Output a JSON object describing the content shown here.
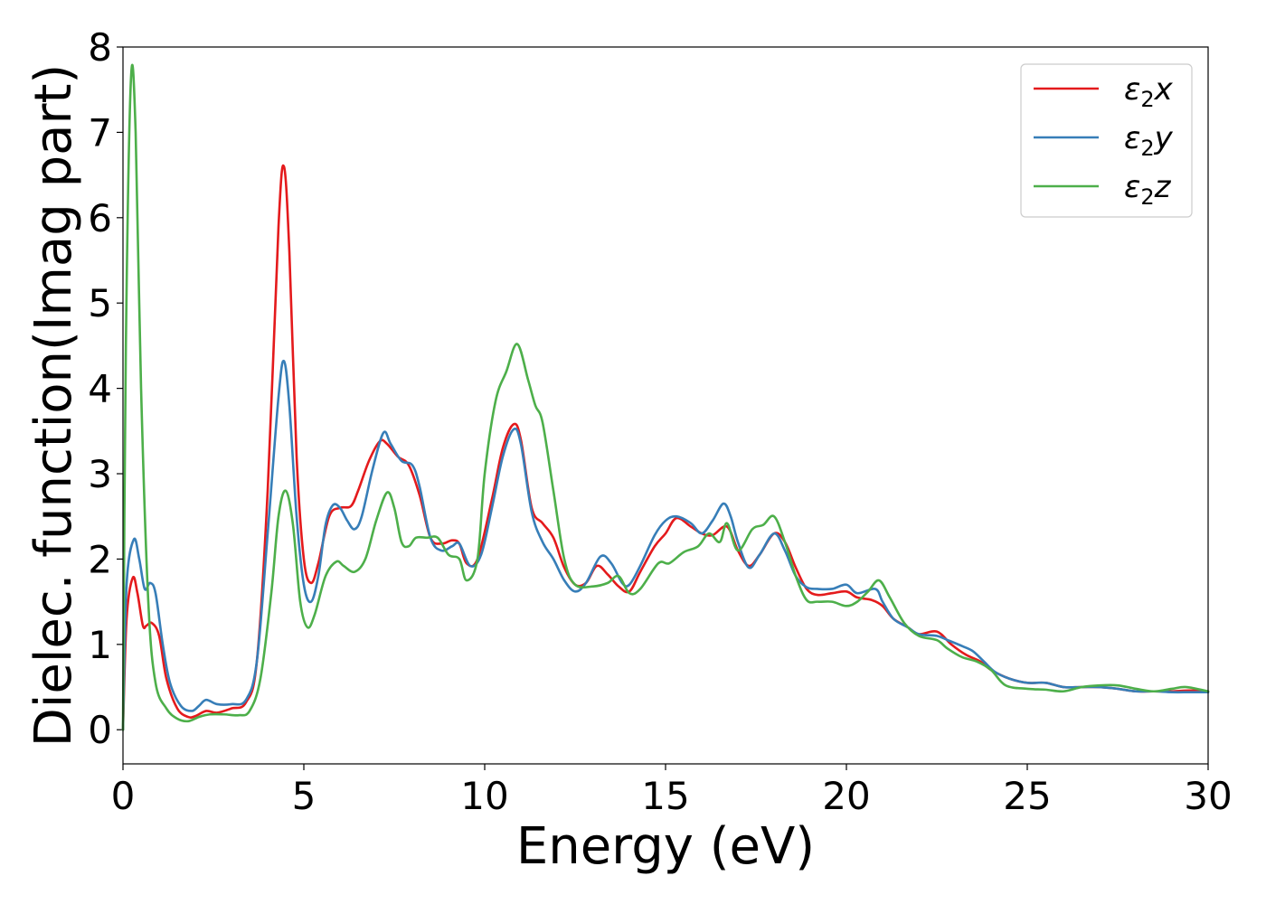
{
  "chart_data": {
    "type": "line",
    "title": "",
    "xlabel": "Energy (eV)",
    "ylabel": "Dielec. function(Imag part)",
    "xlim": [
      0,
      30
    ],
    "ylim": [
      -0.4,
      8
    ],
    "x_ticks": [
      0,
      5,
      10,
      15,
      20,
      25,
      30
    ],
    "y_ticks": [
      0,
      1,
      2,
      3,
      4,
      5,
      6,
      7,
      8
    ],
    "grid": false,
    "legend_position": "top-right",
    "series": [
      {
        "name": "ε2x",
        "legend_base": "ε",
        "legend_sub": "2",
        "legend_var": "x",
        "color": "#e41a1c",
        "points": [
          [
            0,
            0
          ],
          [
            0.1,
            1.3
          ],
          [
            0.27,
            1.78
          ],
          [
            0.4,
            1.6
          ],
          [
            0.55,
            1.22
          ],
          [
            0.65,
            1.22
          ],
          [
            0.8,
            1.25
          ],
          [
            1.0,
            1.1
          ],
          [
            1.2,
            0.6
          ],
          [
            1.5,
            0.25
          ],
          [
            1.8,
            0.15
          ],
          [
            2.0,
            0.16
          ],
          [
            2.3,
            0.22
          ],
          [
            2.6,
            0.2
          ],
          [
            3.0,
            0.25
          ],
          [
            3.4,
            0.32
          ],
          [
            3.7,
            0.8
          ],
          [
            4.0,
            2.8
          ],
          [
            4.3,
            5.9
          ],
          [
            4.45,
            6.6
          ],
          [
            4.6,
            5.6
          ],
          [
            4.8,
            3.2
          ],
          [
            5.0,
            2.0
          ],
          [
            5.2,
            1.72
          ],
          [
            5.4,
            1.95
          ],
          [
            5.7,
            2.5
          ],
          [
            6.0,
            2.6
          ],
          [
            6.3,
            2.62
          ],
          [
            6.5,
            2.8
          ],
          [
            6.8,
            3.15
          ],
          [
            7.1,
            3.38
          ],
          [
            7.3,
            3.35
          ],
          [
            7.6,
            3.2
          ],
          [
            7.9,
            3.1
          ],
          [
            8.2,
            2.75
          ],
          [
            8.5,
            2.25
          ],
          [
            8.8,
            2.18
          ],
          [
            9.1,
            2.22
          ],
          [
            9.3,
            2.18
          ],
          [
            9.5,
            1.95
          ],
          [
            9.8,
            2.0
          ],
          [
            10.2,
            2.7
          ],
          [
            10.5,
            3.3
          ],
          [
            10.8,
            3.58
          ],
          [
            11.0,
            3.4
          ],
          [
            11.3,
            2.6
          ],
          [
            11.6,
            2.42
          ],
          [
            11.9,
            2.25
          ],
          [
            12.2,
            1.9
          ],
          [
            12.5,
            1.7
          ],
          [
            12.8,
            1.72
          ],
          [
            13.1,
            1.92
          ],
          [
            13.4,
            1.82
          ],
          [
            13.7,
            1.68
          ],
          [
            14.0,
            1.62
          ],
          [
            14.3,
            1.85
          ],
          [
            14.7,
            2.15
          ],
          [
            15.0,
            2.3
          ],
          [
            15.3,
            2.48
          ],
          [
            15.7,
            2.38
          ],
          [
            16.0,
            2.3
          ],
          [
            16.3,
            2.28
          ],
          [
            16.7,
            2.38
          ],
          [
            17.0,
            2.1
          ],
          [
            17.3,
            1.92
          ],
          [
            17.6,
            2.05
          ],
          [
            18.0,
            2.3
          ],
          [
            18.3,
            2.2
          ],
          [
            18.6,
            1.9
          ],
          [
            18.9,
            1.65
          ],
          [
            19.2,
            1.58
          ],
          [
            19.6,
            1.6
          ],
          [
            20.0,
            1.62
          ],
          [
            20.3,
            1.55
          ],
          [
            20.7,
            1.52
          ],
          [
            21.0,
            1.45
          ],
          [
            21.3,
            1.3
          ],
          [
            21.7,
            1.2
          ],
          [
            22.0,
            1.12
          ],
          [
            22.5,
            1.15
          ],
          [
            22.9,
            1.0
          ],
          [
            23.3,
            0.88
          ],
          [
            23.7,
            0.8
          ],
          [
            24.0,
            0.7
          ],
          [
            24.5,
            0.6
          ],
          [
            25.0,
            0.55
          ],
          [
            25.5,
            0.55
          ],
          [
            26.0,
            0.5
          ],
          [
            26.5,
            0.5
          ],
          [
            27.0,
            0.5
          ],
          [
            27.5,
            0.48
          ],
          [
            28.0,
            0.45
          ],
          [
            28.5,
            0.45
          ],
          [
            29.0,
            0.45
          ],
          [
            29.5,
            0.46
          ],
          [
            30.0,
            0.45
          ]
        ]
      },
      {
        "name": "ε2y",
        "legend_base": "ε",
        "legend_sub": "2",
        "legend_var": "y",
        "color": "#377eb8",
        "points": [
          [
            0,
            0
          ],
          [
            0.1,
            1.7
          ],
          [
            0.3,
            2.23
          ],
          [
            0.45,
            2.0
          ],
          [
            0.6,
            1.65
          ],
          [
            0.75,
            1.72
          ],
          [
            0.9,
            1.6
          ],
          [
            1.1,
            1.0
          ],
          [
            1.3,
            0.55
          ],
          [
            1.6,
            0.28
          ],
          [
            1.9,
            0.22
          ],
          [
            2.1,
            0.28
          ],
          [
            2.3,
            0.35
          ],
          [
            2.6,
            0.3
          ],
          [
            3.0,
            0.3
          ],
          [
            3.4,
            0.35
          ],
          [
            3.7,
            0.8
          ],
          [
            4.0,
            2.3
          ],
          [
            4.3,
            3.9
          ],
          [
            4.45,
            4.32
          ],
          [
            4.6,
            3.8
          ],
          [
            4.8,
            2.5
          ],
          [
            5.0,
            1.7
          ],
          [
            5.2,
            1.5
          ],
          [
            5.4,
            1.8
          ],
          [
            5.6,
            2.4
          ],
          [
            5.8,
            2.63
          ],
          [
            6.0,
            2.6
          ],
          [
            6.2,
            2.45
          ],
          [
            6.4,
            2.35
          ],
          [
            6.6,
            2.5
          ],
          [
            6.9,
            3.05
          ],
          [
            7.2,
            3.48
          ],
          [
            7.4,
            3.35
          ],
          [
            7.7,
            3.15
          ],
          [
            8.0,
            3.1
          ],
          [
            8.2,
            2.85
          ],
          [
            8.5,
            2.25
          ],
          [
            8.8,
            2.1
          ],
          [
            9.1,
            2.15
          ],
          [
            9.3,
            2.18
          ],
          [
            9.6,
            1.92
          ],
          [
            9.9,
            2.05
          ],
          [
            10.2,
            2.6
          ],
          [
            10.5,
            3.2
          ],
          [
            10.8,
            3.52
          ],
          [
            11.0,
            3.35
          ],
          [
            11.3,
            2.55
          ],
          [
            11.6,
            2.2
          ],
          [
            11.9,
            2.0
          ],
          [
            12.2,
            1.75
          ],
          [
            12.5,
            1.62
          ],
          [
            12.8,
            1.72
          ],
          [
            13.2,
            2.03
          ],
          [
            13.5,
            1.95
          ],
          [
            13.8,
            1.72
          ],
          [
            14.0,
            1.7
          ],
          [
            14.3,
            1.92
          ],
          [
            14.7,
            2.28
          ],
          [
            15.0,
            2.45
          ],
          [
            15.3,
            2.5
          ],
          [
            15.7,
            2.42
          ],
          [
            16.0,
            2.3
          ],
          [
            16.3,
            2.45
          ],
          [
            16.6,
            2.65
          ],
          [
            16.8,
            2.5
          ],
          [
            17.0,
            2.2
          ],
          [
            17.3,
            1.9
          ],
          [
            17.6,
            2.05
          ],
          [
            18.0,
            2.3
          ],
          [
            18.3,
            2.1
          ],
          [
            18.6,
            1.8
          ],
          [
            18.9,
            1.67
          ],
          [
            19.2,
            1.65
          ],
          [
            19.6,
            1.65
          ],
          [
            20.0,
            1.7
          ],
          [
            20.3,
            1.6
          ],
          [
            20.8,
            1.65
          ],
          [
            21.0,
            1.5
          ],
          [
            21.3,
            1.3
          ],
          [
            21.7,
            1.2
          ],
          [
            22.0,
            1.12
          ],
          [
            22.5,
            1.1
          ],
          [
            22.8,
            1.05
          ],
          [
            23.2,
            0.98
          ],
          [
            23.5,
            0.92
          ],
          [
            23.8,
            0.8
          ],
          [
            24.1,
            0.68
          ],
          [
            24.5,
            0.6
          ],
          [
            25.0,
            0.55
          ],
          [
            25.5,
            0.55
          ],
          [
            26.0,
            0.5
          ],
          [
            26.5,
            0.5
          ],
          [
            27.0,
            0.5
          ],
          [
            27.5,
            0.48
          ],
          [
            28.0,
            0.45
          ],
          [
            28.5,
            0.45
          ],
          [
            29.0,
            0.44
          ],
          [
            29.5,
            0.44
          ],
          [
            30.0,
            0.44
          ]
        ]
      },
      {
        "name": "ε2z",
        "legend_base": "ε",
        "legend_sub": "2",
        "legend_var": "z",
        "color": "#4daf4a",
        "points": [
          [
            0,
            0
          ],
          [
            0.08,
            4.5
          ],
          [
            0.22,
            7.62
          ],
          [
            0.35,
            7.0
          ],
          [
            0.5,
            4.0
          ],
          [
            0.7,
            1.5
          ],
          [
            0.9,
            0.55
          ],
          [
            1.2,
            0.25
          ],
          [
            1.5,
            0.13
          ],
          [
            1.8,
            0.1
          ],
          [
            2.1,
            0.15
          ],
          [
            2.4,
            0.18
          ],
          [
            2.8,
            0.18
          ],
          [
            3.2,
            0.17
          ],
          [
            3.5,
            0.22
          ],
          [
            3.8,
            0.6
          ],
          [
            4.1,
            1.6
          ],
          [
            4.3,
            2.5
          ],
          [
            4.5,
            2.8
          ],
          [
            4.7,
            2.4
          ],
          [
            4.9,
            1.5
          ],
          [
            5.1,
            1.2
          ],
          [
            5.3,
            1.35
          ],
          [
            5.6,
            1.8
          ],
          [
            5.9,
            1.97
          ],
          [
            6.1,
            1.92
          ],
          [
            6.4,
            1.85
          ],
          [
            6.7,
            2.0
          ],
          [
            7.0,
            2.45
          ],
          [
            7.3,
            2.78
          ],
          [
            7.5,
            2.6
          ],
          [
            7.7,
            2.2
          ],
          [
            7.9,
            2.15
          ],
          [
            8.1,
            2.25
          ],
          [
            8.4,
            2.25
          ],
          [
            8.7,
            2.25
          ],
          [
            9.0,
            2.05
          ],
          [
            9.3,
            2.0
          ],
          [
            9.5,
            1.75
          ],
          [
            9.8,
            2.0
          ],
          [
            10.0,
            3.0
          ],
          [
            10.3,
            3.85
          ],
          [
            10.6,
            4.2
          ],
          [
            10.9,
            4.52
          ],
          [
            11.2,
            4.1
          ],
          [
            11.4,
            3.8
          ],
          [
            11.6,
            3.6
          ],
          [
            11.9,
            2.8
          ],
          [
            12.2,
            2.0
          ],
          [
            12.5,
            1.7
          ],
          [
            13.0,
            1.68
          ],
          [
            13.4,
            1.72
          ],
          [
            13.7,
            1.8
          ],
          [
            14.0,
            1.6
          ],
          [
            14.3,
            1.65
          ],
          [
            14.8,
            1.95
          ],
          [
            15.1,
            1.95
          ],
          [
            15.5,
            2.08
          ],
          [
            15.9,
            2.15
          ],
          [
            16.2,
            2.3
          ],
          [
            16.5,
            2.2
          ],
          [
            16.7,
            2.42
          ],
          [
            17.0,
            2.1
          ],
          [
            17.4,
            2.35
          ],
          [
            17.7,
            2.4
          ],
          [
            18.0,
            2.5
          ],
          [
            18.3,
            2.2
          ],
          [
            18.6,
            1.8
          ],
          [
            18.9,
            1.52
          ],
          [
            19.2,
            1.5
          ],
          [
            19.6,
            1.5
          ],
          [
            20.0,
            1.45
          ],
          [
            20.3,
            1.5
          ],
          [
            20.6,
            1.62
          ],
          [
            20.9,
            1.75
          ],
          [
            21.2,
            1.55
          ],
          [
            21.6,
            1.25
          ],
          [
            22.0,
            1.1
          ],
          [
            22.5,
            1.05
          ],
          [
            22.8,
            0.95
          ],
          [
            23.2,
            0.85
          ],
          [
            23.6,
            0.8
          ],
          [
            24.0,
            0.7
          ],
          [
            24.4,
            0.52
          ],
          [
            25.0,
            0.48
          ],
          [
            25.5,
            0.47
          ],
          [
            26.0,
            0.45
          ],
          [
            26.5,
            0.5
          ],
          [
            27.0,
            0.52
          ],
          [
            27.5,
            0.52
          ],
          [
            28.0,
            0.48
          ],
          [
            28.5,
            0.45
          ],
          [
            29.0,
            0.48
          ],
          [
            29.4,
            0.5
          ],
          [
            30.0,
            0.45
          ]
        ]
      }
    ]
  }
}
